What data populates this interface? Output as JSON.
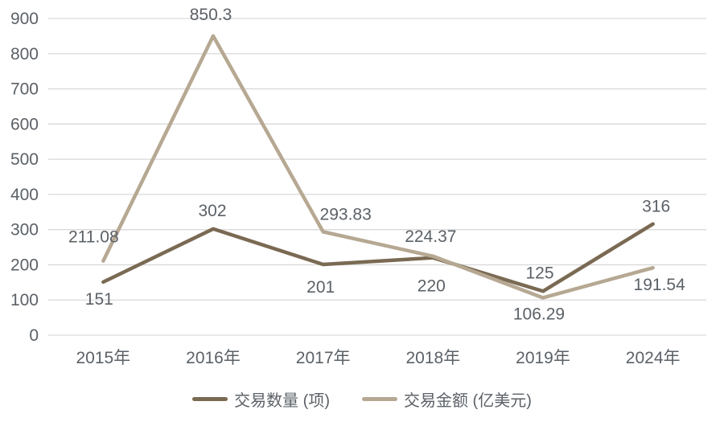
{
  "chart_data": {
    "type": "line",
    "categories": [
      "2015年",
      "2016年",
      "2017年",
      "2018年",
      "2019年",
      "2024年"
    ],
    "series": [
      {
        "name": "交易数量 (项)",
        "color": "#7a6a53",
        "values": [
          151,
          302,
          201,
          220,
          125,
          316
        ],
        "point_labels": [
          "151",
          "302",
          "201",
          "220",
          "125",
          "316"
        ]
      },
      {
        "name": "交易金额 (亿美元)",
        "color": "#b6a892",
        "values": [
          211.08,
          850.3,
          293.83,
          224.37,
          106.29,
          191.54
        ],
        "point_labels": [
          "211.08",
          "850.3",
          "293.83",
          "224.37",
          "106.29",
          "191.54"
        ]
      }
    ],
    "title": "",
    "xlabel": "",
    "ylabel": "",
    "ylim": [
      0,
      900
    ],
    "ytick_step": 100,
    "ytick_labels": [
      "0",
      "100",
      "200",
      "300",
      "400",
      "500",
      "600",
      "700",
      "800",
      "900"
    ],
    "grid": "horizontal",
    "legend_position": "bottom"
  },
  "legend": {
    "items": [
      {
        "label": "交易数量 (项)",
        "color": "#7a6a53"
      },
      {
        "label": "交易金额 (亿美元)",
        "color": "#b6a892"
      }
    ]
  },
  "colors": {
    "background": "#ffffff",
    "gridline": "#d9d9d9",
    "text": "#5b6167",
    "series_count": "#7a6a53",
    "series_amount": "#b6a892"
  }
}
